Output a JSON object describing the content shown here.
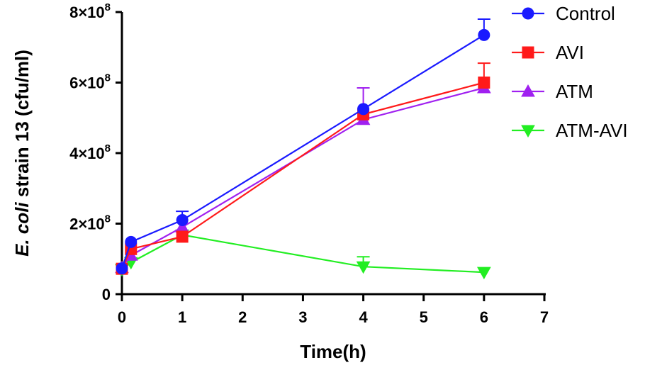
{
  "chart_data": {
    "type": "line",
    "xlabel": "Time(h)",
    "ylabel_italic": "E. coli",
    "ylabel_rest": " strain 13 (cfu/ml)",
    "x_ticks": [
      "0",
      "1",
      "2",
      "3",
      "4",
      "5",
      "6",
      "7"
    ],
    "y_ticks": [
      {
        "value": 0,
        "base": "0",
        "exp": ""
      },
      {
        "value": 200000000,
        "base": "2×10",
        "exp": "8"
      },
      {
        "value": 400000000,
        "base": "4×10",
        "exp": "8"
      },
      {
        "value": 600000000,
        "base": "6×10",
        "exp": "8"
      },
      {
        "value": 800000000,
        "base": "8×10",
        "exp": "8"
      }
    ],
    "xlim": [
      0,
      7
    ],
    "ylim": [
      0,
      800000000
    ],
    "legend_position": "top-right",
    "series": [
      {
        "name": "Control",
        "color": "#1a1aff",
        "marker": "circle",
        "x": [
          0,
          0.15,
          1,
          4,
          6
        ],
        "y": [
          73000000,
          148000000,
          210000000,
          525000000,
          735000000
        ],
        "err": [
          0,
          0,
          25000000,
          0,
          45000000
        ]
      },
      {
        "name": "AVI",
        "color": "#ff1a1a",
        "marker": "square",
        "x": [
          0,
          0.15,
          1,
          4,
          6
        ],
        "y": [
          72000000,
          128000000,
          163000000,
          510000000,
          600000000
        ],
        "err": [
          0,
          0,
          0,
          0,
          55000000
        ]
      },
      {
        "name": "ATM",
        "color": "#a020f0",
        "marker": "triangle-up",
        "x": [
          0,
          0.15,
          1,
          4,
          6
        ],
        "y": [
          75000000,
          110000000,
          190000000,
          495000000,
          585000000
        ],
        "err": [
          0,
          0,
          0,
          90000000,
          0
        ]
      },
      {
        "name": "ATM-AVI",
        "color": "#22ee22",
        "marker": "triangle-down",
        "x": [
          0,
          0.15,
          1,
          4,
          6
        ],
        "y": [
          70000000,
          90000000,
          168000000,
          78000000,
          62000000
        ],
        "err": [
          0,
          0,
          0,
          28000000,
          0
        ]
      }
    ]
  }
}
